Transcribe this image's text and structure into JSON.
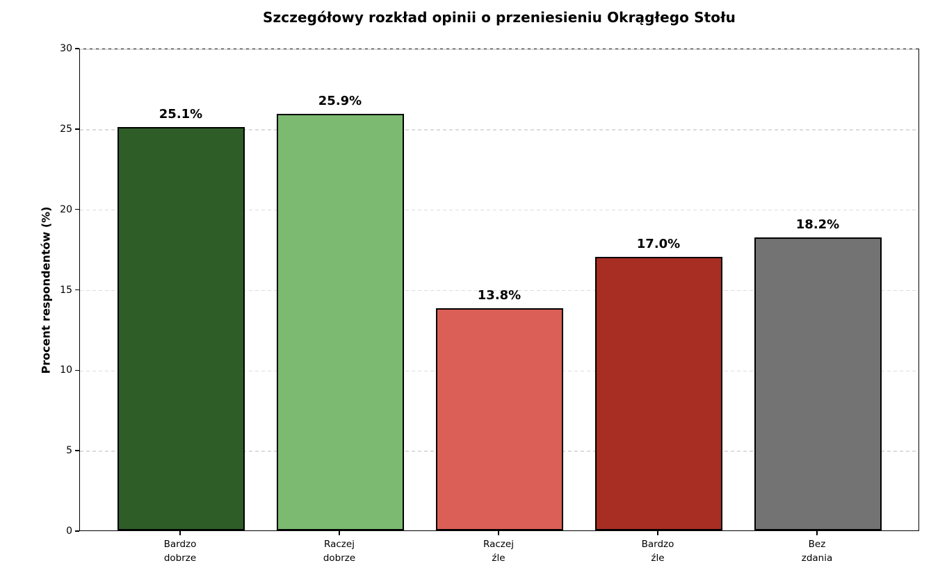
{
  "chart_data": {
    "type": "bar",
    "title": "Szczegółowy rozkład opinii o przeniesieniu Okrągłego Stołu",
    "ylabel": "Procent respondentów (%)",
    "xlabel": "",
    "categories": [
      "Bardzo\ndobrze",
      "Raczej\ndobrze",
      "Raczej\nźle",
      "Bardzo\nźle",
      "Bez\nzdania"
    ],
    "values": [
      25.1,
      25.9,
      13.8,
      17.0,
      18.2
    ],
    "value_labels": [
      "25.1%",
      "25.9%",
      "13.8%",
      "17.0%",
      "18.2%"
    ],
    "bar_colors": [
      "#2E5D27",
      "#7BBA70",
      "#DB5F56",
      "#A82E24",
      "#737373"
    ],
    "bar_edge_color": "#000000",
    "ylim": [
      0,
      30
    ],
    "yticks": [
      0,
      5,
      10,
      15,
      20,
      25,
      30
    ],
    "grid": "horizontal dashed gridlines at y ticks, drawn behind bars",
    "grid_color": "#dcdcdc",
    "legend": "none",
    "background": "#ffffff"
  }
}
